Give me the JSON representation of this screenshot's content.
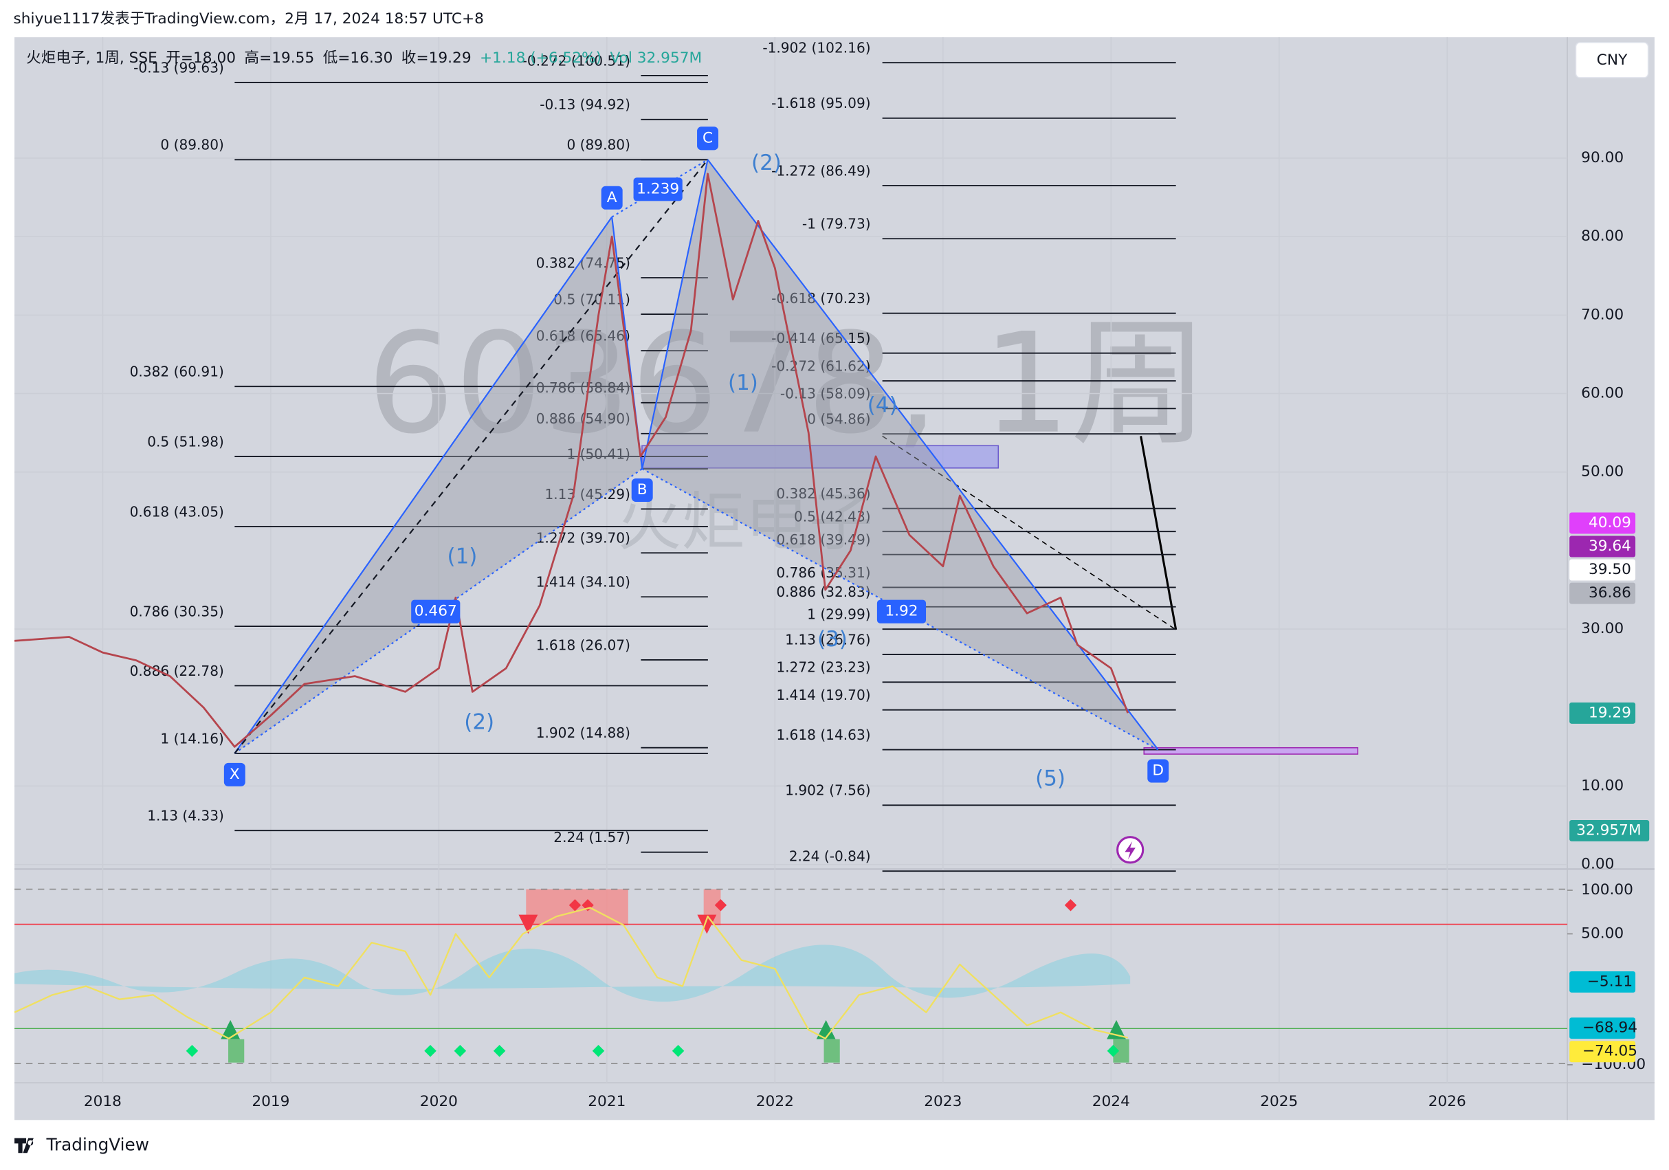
{
  "header": {
    "text": "shiyue1117发表于TradingView.com，2月 17, 2024 18:57 UTC+8"
  },
  "legend": [
    "火炬电子, 1周, SSE",
    "开=18.00",
    "高=19.55",
    "低=16.30",
    "收=19.29",
    "+1.18 (+6.52%)",
    "Vol 32.957M"
  ],
  "currency_button": "CNY",
  "footer": {
    "brand": "TradingView"
  },
  "chart_data": [
    {
      "type": "line",
      "watermark": "603678, 1周",
      "watermark_sub": "火炬电子",
      "xlim": [
        2017.475,
        2026.715
      ],
      "xticks": [
        2018,
        2019,
        2020,
        2021,
        2022,
        2023,
        2024,
        2025,
        2026
      ],
      "ylim": [
        -0.3,
        105.4
      ],
      "yticks": [
        {
          "value": 0,
          "label": "0.00"
        },
        {
          "value": 10,
          "label": "10.00"
        },
        {
          "value": 30,
          "label": "30.00"
        },
        {
          "value": 50,
          "label": "50.00"
        },
        {
          "value": 60,
          "label": "60.00"
        },
        {
          "value": 70,
          "label": "70.00"
        },
        {
          "value": 80,
          "label": "80.00"
        },
        {
          "value": 90,
          "label": "90.00"
        }
      ],
      "grid": true,
      "series": [
        {
          "name": "收",
          "color": "#b5454d",
          "x": [
            2017.475,
            2017.8,
            2018.0,
            2018.2,
            2018.4,
            2018.6,
            2018.785,
            2019.0,
            2019.2,
            2019.5,
            2019.8,
            2020.0,
            2020.1,
            2020.2,
            2020.4,
            2020.6,
            2020.8,
            2020.95,
            2021.03,
            2021.2,
            2021.35,
            2021.5,
            2021.6,
            2021.75,
            2021.9,
            2022.0,
            2022.2,
            2022.3,
            2022.45,
            2022.6,
            2022.8,
            2023.0,
            2023.1,
            2023.3,
            2023.5,
            2023.7,
            2023.8,
            2024.0,
            2024.1
          ],
          "values": [
            28.5,
            29,
            27,
            26,
            24,
            20,
            15,
            19,
            23,
            24,
            22,
            25,
            34,
            22,
            25,
            33,
            47,
            70,
            80,
            52,
            57,
            68,
            88,
            72,
            82,
            76,
            55,
            35,
            40,
            52,
            42,
            38,
            47,
            38,
            32,
            34,
            28,
            25,
            19.29
          ]
        }
      ],
      "pattern": {
        "color": "#2962ff",
        "points": [
          {
            "label": "X",
            "x": 2018.785,
            "y": 14.16
          },
          {
            "label": "A",
            "x": 2021.03,
            "y": 82.5
          },
          {
            "label": "B",
            "x": 2021.21,
            "y": 50.41
          },
          {
            "label": "C",
            "x": 2021.6,
            "y": 89.8
          },
          {
            "label": "D",
            "x": 2024.28,
            "y": 14.63
          }
        ],
        "ratios": [
          "0.467",
          "1.239",
          "1.92"
        ]
      },
      "wave_labels": [
        "(1)",
        "(2)",
        "(1)",
        "(2)",
        "(3)",
        "(4)",
        "(5)"
      ],
      "fib_sets": [
        {
          "levels": [
            {
              "label": "-0.13 (99.63)",
              "price": 99.63
            },
            {
              "label": "0 (89.80)",
              "price": 89.8
            },
            {
              "label": "0.382 (60.91)",
              "price": 60.91
            },
            {
              "label": "0.5 (51.98)",
              "price": 51.98
            },
            {
              "label": "0.618 (43.05)",
              "price": 43.05
            },
            {
              "label": "0.786 (30.35)",
              "price": 30.35
            },
            {
              "label": "0.886 (22.78)",
              "price": 22.78
            },
            {
              "label": "1 (14.16)",
              "price": 14.16
            },
            {
              "label": "1.13 (4.33)",
              "price": 4.33
            }
          ]
        },
        {
          "levels": [
            {
              "label": "-0.272 (100.51)",
              "price": 100.51
            },
            {
              "label": "-0.13 (94.92)",
              "price": 94.92
            },
            {
              "label": "0 (89.80)",
              "price": 89.8
            },
            {
              "label": "0.382 (74.75)",
              "price": 74.75
            },
            {
              "label": "0.5 (70.11)",
              "price": 70.11
            },
            {
              "label": "0.618 (65.46)",
              "price": 65.46
            },
            {
              "label": "0.786 (58.84)",
              "price": 58.84
            },
            {
              "label": "0.886 (54.90)",
              "price": 54.9
            },
            {
              "label": "1 (50.41)",
              "price": 50.41
            },
            {
              "label": "1.13 (45.29)",
              "price": 45.29
            },
            {
              "label": "1.272 (39.70)",
              "price": 39.7
            },
            {
              "label": "1.414 (34.10)",
              "price": 34.1
            },
            {
              "label": "1.618 (26.07)",
              "price": 26.07
            },
            {
              "label": "1.902 (14.88)",
              "price": 14.88
            },
            {
              "label": "2.24 (1.57)",
              "price": 1.57
            }
          ]
        },
        {
          "levels": [
            {
              "label": "-1.902 (102.16)",
              "price": 102.16
            },
            {
              "label": "-1.618 (95.09)",
              "price": 95.09
            },
            {
              "label": "-1.272 (86.49)",
              "price": 86.49
            },
            {
              "label": "-1 (79.73)",
              "price": 79.73
            },
            {
              "label": "-0.618 (70.23)",
              "price": 70.23
            },
            {
              "label": "-0.414 (65.15)",
              "price": 65.15
            },
            {
              "label": "-0.272 (61.62)",
              "price": 61.62
            },
            {
              "label": "-0.13 (58.09)",
              "price": 58.09
            },
            {
              "label": "0 (54.86)",
              "price": 54.86
            },
            {
              "label": "0.382 (45.36)",
              "price": 45.36
            },
            {
              "label": "0.5 (42.43)",
              "price": 42.43
            },
            {
              "label": "0.618 (39.49)",
              "price": 39.49
            },
            {
              "label": "0.786 (35.31)",
              "price": 35.31
            },
            {
              "label": "0.886 (32.83)",
              "price": 32.83
            },
            {
              "label": "1 (29.99)",
              "price": 29.99
            },
            {
              "label": "1.13 (26.76)",
              "price": 26.76
            },
            {
              "label": "1.272 (23.23)",
              "price": 23.23
            },
            {
              "label": "1.414 (19.70)",
              "price": 19.7
            },
            {
              "label": "1.618 (14.63)",
              "price": 14.63
            },
            {
              "label": "1.902 (7.56)",
              "price": 7.56
            },
            {
              "label": "2.24 (-0.84)",
              "price": -0.84
            }
          ]
        }
      ],
      "badges": [
        {
          "label": "40.09",
          "value": 40.09,
          "color": "#e040fb",
          "text_color": "#ffffff"
        },
        {
          "label": "39.64",
          "value": 39.64,
          "color": "#9c27b0",
          "text_color": "#ffffff"
        },
        {
          "label": "39.50",
          "value": 39.5,
          "color": "#ffffff",
          "text_color": "#131722"
        },
        {
          "label": "36.86",
          "value": 36.86,
          "color": "#b2b5be",
          "text_color": "#131722"
        },
        {
          "label": "19.29",
          "value": 19.29,
          "color": "#26a69a",
          "text_color": "#ffffff"
        }
      ],
      "volume_badge": {
        "label": "32.957M",
        "color": "#26a69a"
      }
    },
    {
      "type": "oscillator",
      "ylim": [
        -117,
        120.7
      ],
      "yticks": [
        {
          "value": 100,
          "label": "100.00"
        },
        {
          "value": 50,
          "label": "50.00"
        },
        {
          "value": -100,
          "label": "−100.00"
        }
      ],
      "series": [
        {
          "name": "oscillator",
          "color": "#f0e060",
          "x": [
            2017.475,
            2017.7,
            2017.9,
            2018.1,
            2018.3,
            2018.5,
            2018.75,
            2019.0,
            2019.2,
            2019.4,
            2019.6,
            2019.8,
            2019.95,
            2020.1,
            2020.3,
            2020.5,
            2020.7,
            2020.9,
            2021.1,
            2021.3,
            2021.45,
            2021.6,
            2021.8,
            2022.0,
            2022.2,
            2022.3,
            2022.5,
            2022.7,
            2022.9,
            2023.1,
            2023.3,
            2023.5,
            2023.7,
            2023.9,
            2024.1
          ],
          "values": [
            -40,
            -20,
            -10,
            -25,
            -20,
            -45,
            -70,
            -40,
            0,
            -10,
            40,
            30,
            -20,
            50,
            0,
            50,
            70,
            80,
            60,
            0,
            -10,
            70,
            20,
            10,
            -60,
            -70,
            -20,
            -10,
            -40,
            15,
            -20,
            -55,
            -40,
            -60,
            -68.94
          ]
        }
      ],
      "badges": [
        {
          "label": "−5.11",
          "value": -5.11,
          "color": "#00bcd4",
          "text_color": "#131722"
        },
        {
          "label": "−68.94",
          "value": -68.94,
          "color": "#00bcd4",
          "text_color": "#131722"
        },
        {
          "label": "−74.05",
          "value": -74.05,
          "color": "#ffeb3b",
          "text_color": "#131722"
        }
      ]
    }
  ]
}
